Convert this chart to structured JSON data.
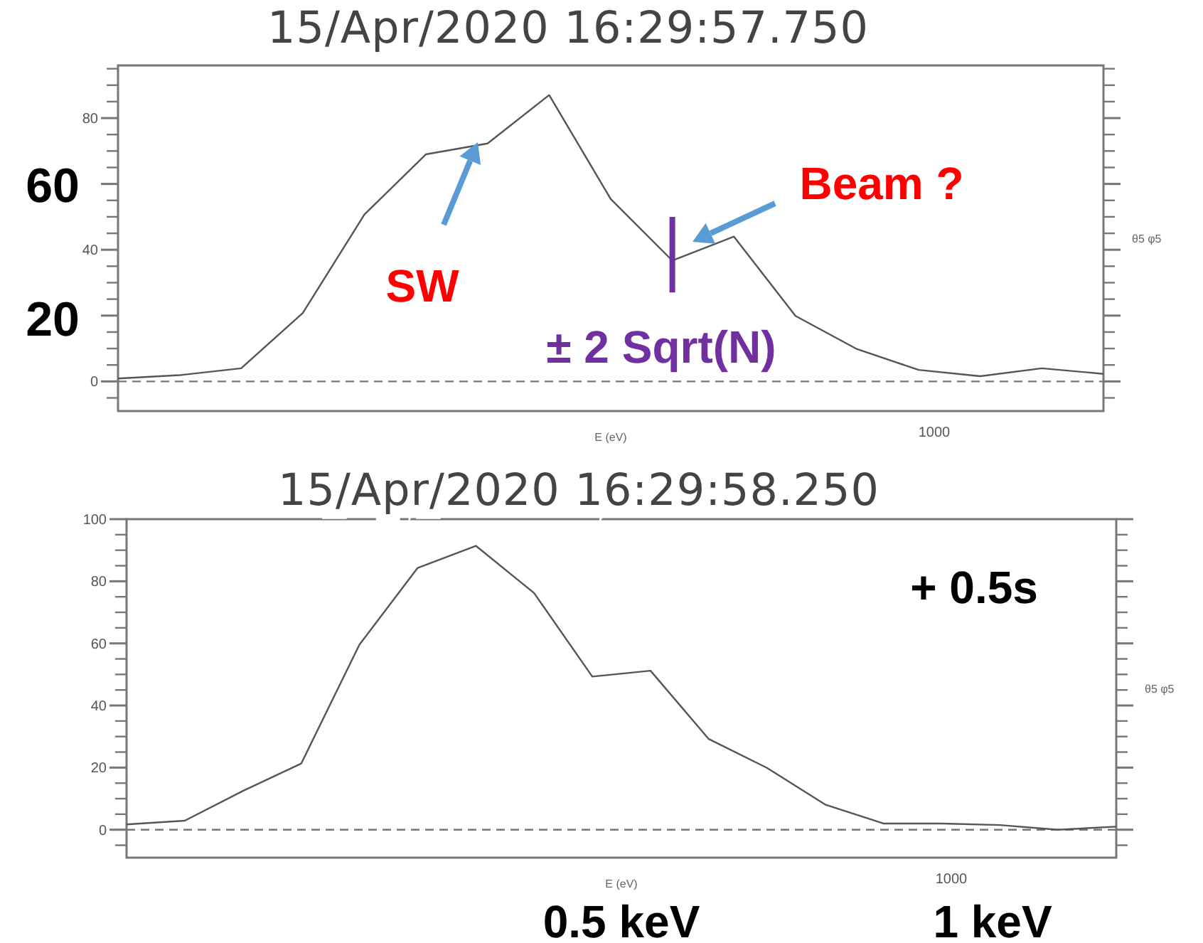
{
  "chart_data": [
    {
      "type": "line",
      "title": "15/Apr/2020 16:29:57.750",
      "xlabel": "E (eV)",
      "y2label": "θ5 φ5",
      "categories": [
        null,
        null,
        null,
        null,
        null,
        null,
        null,
        null,
        null,
        null,
        null,
        null,
        null,
        null,
        null,
        null,
        null
      ],
      "series": [
        {
          "color": "#555555",
          "values": [
            0.9,
            1.9,
            4.0,
            20.8,
            50.7,
            69.0,
            72.3,
            87.0,
            55.4,
            36.7,
            44.0,
            19.9,
            9.8,
            3.5,
            1.6,
            4.0,
            2.3
          ],
          "errors": [
            null,
            null,
            null,
            null,
            null,
            null,
            null,
            null,
            null,
            [
              27,
              50
            ],
            null,
            null,
            null,
            null,
            null,
            null,
            null
          ]
        }
      ],
      "ylim": [
        -9,
        96
      ],
      "yticks": [
        {
          "value": -5,
          "label": null
        },
        0,
        {
          "value": 5,
          "label": null
        },
        {
          "value": 10,
          "label": null
        },
        {
          "value": 15,
          "label": null
        },
        {
          "value": 20,
          "label": null
        },
        {
          "value": 25,
          "label": null
        },
        {
          "value": 30,
          "label": null
        },
        {
          "value": 35,
          "label": null
        },
        40,
        {
          "value": 45,
          "label": null
        },
        {
          "value": 50,
          "label": null
        },
        {
          "value": 55,
          "label": null
        },
        {
          "value": 60,
          "label": null
        },
        {
          "value": 65,
          "label": null
        },
        {
          "value": 70,
          "label": null
        },
        {
          "value": 75,
          "label": null
        },
        80,
        {
          "value": 85,
          "label": null
        },
        {
          "value": 90,
          "label": null
        },
        {
          "value": 95,
          "label": null
        }
      ],
      "ref_lines": [
        {
          "axis": "y",
          "value": 0,
          "line_style": "dashed",
          "color": "#777777"
        }
      ],
      "annotations": [
        "60",
        "20",
        "SW",
        "Beam ?",
        "± 2 Sqrt(N)",
        "1000"
      ]
    },
    {
      "type": "line",
      "title": "15/Apr/2020 16:29:58.250",
      "xlabel": "E (eV)",
      "y2label": "θ5 φ5",
      "categories": [
        null,
        null,
        null,
        null,
        null,
        null,
        null,
        null,
        null,
        null,
        null,
        null,
        null,
        null,
        null,
        null,
        null,
        null
      ],
      "series": [
        {
          "color": "#555555",
          "values": [
            1.7,
            2.9,
            12.5,
            21.3,
            59.6,
            84.3,
            91.4,
            76.2,
            49.3,
            51.2,
            29.2,
            19.9,
            8.1,
            2.0,
            2.0,
            1.5,
            0,
            1.0
          ]
        }
      ],
      "ylim": [
        -9,
        100
      ],
      "yticks": [
        {
          "value": -5,
          "label": null
        },
        0,
        {
          "value": 5,
          "label": null
        },
        {
          "value": 10,
          "label": null
        },
        {
          "value": 15,
          "label": null
        },
        20,
        {
          "value": 25,
          "label": null
        },
        {
          "value": 30,
          "label": null
        },
        {
          "value": 35,
          "label": null
        },
        40,
        {
          "value": 45,
          "label": null
        },
        {
          "value": 50,
          "label": null
        },
        {
          "value": 55,
          "label": null
        },
        60,
        {
          "value": 65,
          "label": null
        },
        {
          "value": 70,
          "label": null
        },
        {
          "value": 75,
          "label": null
        },
        80,
        {
          "value": 85,
          "label": null
        },
        {
          "value": 90,
          "label": null
        },
        {
          "value": 95,
          "label": null
        },
        100
      ],
      "ref_lines": [
        {
          "axis": "y",
          "value": 0,
          "line_style": "dashed",
          "color": "#777777"
        }
      ],
      "annotations": [
        "+ 0.5s",
        "0.5 keV",
        "1 keV",
        "1000"
      ]
    }
  ]
}
